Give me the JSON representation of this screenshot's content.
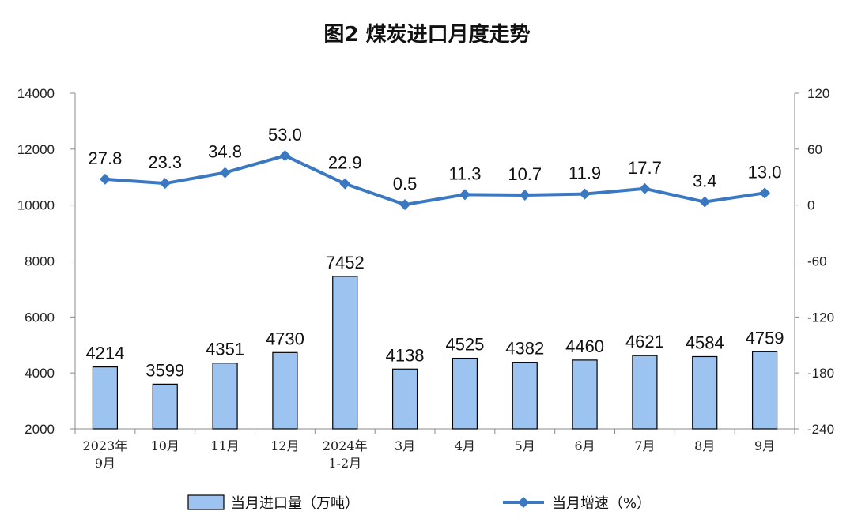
{
  "chart_data": {
    "type": "bar",
    "title": "图2  煤炭进口月度走势",
    "categories": [
      [
        "2023年",
        "9月"
      ],
      [
        "10月"
      ],
      [
        "11月"
      ],
      [
        "12月"
      ],
      [
        "2024年",
        "1-2月"
      ],
      [
        "3月"
      ],
      [
        "4月"
      ],
      [
        "5月"
      ],
      [
        "6月"
      ],
      [
        "7月"
      ],
      [
        "8月"
      ],
      [
        "9月"
      ]
    ],
    "series": [
      {
        "name": "当月进口量（万吨）",
        "type": "bar",
        "axis": "left",
        "color": "#9dc3f0",
        "values": [
          4214,
          3599,
          4351,
          4730,
          7452,
          4138,
          4525,
          4382,
          4460,
          4621,
          4584,
          4759
        ],
        "labels": [
          "4214",
          "3599",
          "4351",
          "4730",
          "7452",
          "4138",
          "4525",
          "4382",
          "4460",
          "4621",
          "4584",
          "4759"
        ]
      },
      {
        "name": "当月增速（%）",
        "type": "line",
        "axis": "right",
        "color": "#3a78c2",
        "values": [
          27.8,
          23.3,
          34.8,
          53.0,
          22.9,
          0.5,
          11.3,
          10.7,
          11.9,
          17.7,
          3.4,
          13.0
        ],
        "labels": [
          "27.8",
          "23.3",
          "34.8",
          "53.0",
          "22.9",
          "0.5",
          "11.3",
          "10.7",
          "11.9",
          "17.7",
          "3.4",
          "13.0"
        ]
      }
    ],
    "y_left": {
      "range": [
        2000,
        14000
      ],
      "ticks": [
        "2000",
        "4000",
        "6000",
        "8000",
        "10000",
        "12000",
        "14000"
      ]
    },
    "y_right": {
      "range": [
        -240,
        120
      ],
      "ticks": [
        "-240",
        "-180",
        "-120",
        "-60",
        "0",
        "60",
        "120"
      ]
    },
    "grid": false,
    "legend_position": "bottom"
  }
}
